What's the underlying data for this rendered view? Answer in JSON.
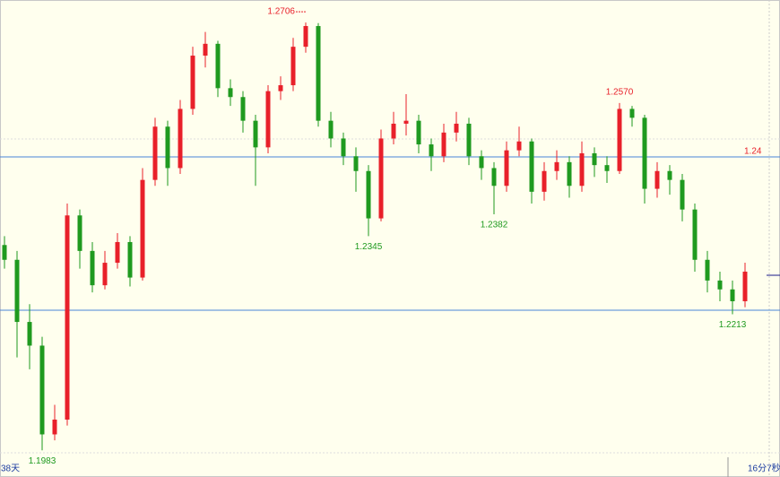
{
  "chart_data": {
    "type": "candlestick",
    "ylim": [
      1.1938,
      1.2744
    ],
    "up_color": "#e8202a",
    "down_color": "#1f9a1f",
    "open": [
      1.233,
      1.2305,
      1.22,
      1.216,
      1.201,
      1.2035,
      1.238,
      1.232,
      1.2262,
      1.23,
      1.2335,
      1.2275,
      1.244,
      1.253,
      1.246,
      1.256,
      1.265,
      1.267,
      1.2595,
      1.258,
      1.254,
      1.2495,
      1.259,
      1.26,
      1.2665,
      1.27,
      1.254,
      1.251,
      1.248,
      1.2455,
      1.2375,
      1.251,
      1.2535,
      1.254,
      1.25,
      1.248,
      1.252,
      1.2535,
      1.248,
      1.246,
      1.243,
      1.249,
      1.2505,
      1.242,
      1.2455,
      1.247,
      1.243,
      1.2485,
      1.2465,
      1.2455,
      1.256,
      1.2545,
      1.2425,
      1.2455,
      1.244,
      1.239,
      1.2305,
      1.227,
      1.2255,
      1.2235
    ],
    "high": [
      1.2345,
      1.232,
      1.223,
      1.2175,
      1.206,
      1.24,
      1.239,
      1.2335,
      1.232,
      1.235,
      1.2345,
      1.246,
      1.2545,
      1.254,
      1.2575,
      1.2665,
      1.269,
      1.2675,
      1.261,
      1.259,
      1.255,
      1.26,
      1.2615,
      1.268,
      1.2706,
      1.2705,
      1.2555,
      1.252,
      1.2495,
      1.2465,
      1.2525,
      1.2555,
      1.2585,
      1.255,
      1.251,
      1.2535,
      1.2555,
      1.2545,
      1.249,
      1.247,
      1.2505,
      1.253,
      1.251,
      1.247,
      1.249,
      1.248,
      1.2505,
      1.2495,
      1.248,
      1.257,
      1.2565,
      1.255,
      1.247,
      1.2465,
      1.245,
      1.24,
      1.232,
      1.2285,
      1.227,
      1.23
    ],
    "low": [
      1.229,
      1.214,
      1.212,
      1.1983,
      1.2,
      1.2025,
      1.229,
      1.225,
      1.2255,
      1.229,
      1.226,
      1.227,
      1.243,
      1.243,
      1.245,
      1.255,
      1.263,
      1.258,
      1.2565,
      1.252,
      1.243,
      1.2485,
      1.2575,
      1.259,
      1.2655,
      1.253,
      1.2495,
      1.2465,
      1.242,
      1.2345,
      1.237,
      1.25,
      1.2515,
      1.2485,
      1.2455,
      1.247,
      1.2505,
      1.2465,
      1.244,
      1.2382,
      1.242,
      1.248,
      1.24,
      1.2405,
      1.244,
      1.241,
      1.242,
      1.2445,
      1.2435,
      1.245,
      1.253,
      1.24,
      1.241,
      1.2415,
      1.237,
      1.2285,
      1.225,
      1.2235,
      1.2213,
      1.2225
    ],
    "close": [
      1.2305,
      1.22,
      1.216,
      1.201,
      1.2035,
      1.238,
      1.232,
      1.2262,
      1.23,
      1.2335,
      1.2275,
      1.244,
      1.253,
      1.246,
      1.256,
      1.265,
      1.267,
      1.2595,
      1.258,
      1.254,
      1.2495,
      1.259,
      1.26,
      1.2665,
      1.27,
      1.254,
      1.251,
      1.248,
      1.2455,
      1.2375,
      1.251,
      1.2535,
      1.254,
      1.25,
      1.248,
      1.252,
      1.2535,
      1.248,
      1.246,
      1.243,
      1.249,
      1.2505,
      1.242,
      1.2455,
      1.247,
      1.243,
      1.2485,
      1.2465,
      1.2455,
      1.256,
      1.2545,
      1.2425,
      1.2455,
      1.244,
      1.239,
      1.2305,
      1.227,
      1.2255,
      1.2235,
      1.2285
    ],
    "annotations": [
      {
        "index": 24,
        "at": "high",
        "label": "1.2706"
      },
      {
        "index": 49,
        "at": "high",
        "label": "1.2570"
      },
      {
        "index": 29,
        "at": "low",
        "label": "1.2345"
      },
      {
        "index": 39,
        "at": "low",
        "label": "1.2382"
      },
      {
        "index": 58,
        "at": "low",
        "label": "1.2213"
      },
      {
        "index": 3,
        "at": "low",
        "label": "1.1983"
      }
    ],
    "line_label": "1.24",
    "left_label": "38天",
    "right_label": "16分7秒"
  }
}
